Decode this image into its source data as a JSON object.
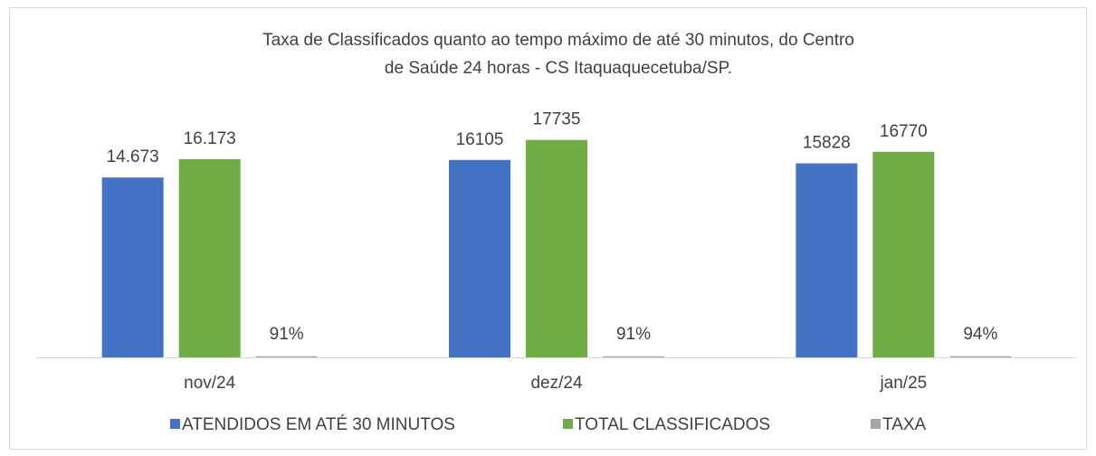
{
  "chart_data": {
    "type": "bar",
    "title": [
      "Taxa de Classificados quanto ao tempo máximo de até 30 minutos, do Centro",
      "de Saúde 24 horas - CS Itaquaquecetuba/SP."
    ],
    "categories": [
      "nov/24",
      "dez/24",
      "jan/25"
    ],
    "series": [
      {
        "name": "ATENDIDOS EM ATÉ 30 MINUTOS",
        "color": "#4472c4",
        "values": [
          14673,
          16105,
          15828
        ],
        "value_labels": [
          "14.673",
          "16105",
          "15828"
        ]
      },
      {
        "name": "TOTAL CLASSIFICADOS",
        "color": "#70ad47",
        "values": [
          16173,
          17735,
          16770
        ],
        "value_labels": [
          "16.173",
          "17735",
          "16770"
        ]
      },
      {
        "name": "TAXA",
        "color": "#a5a5a5",
        "values": [
          91,
          91,
          94
        ],
        "value_labels": [
          "91%",
          "91%",
          "94%"
        ]
      }
    ],
    "ylim": [
      0,
      20000
    ],
    "legend": "bottom"
  }
}
